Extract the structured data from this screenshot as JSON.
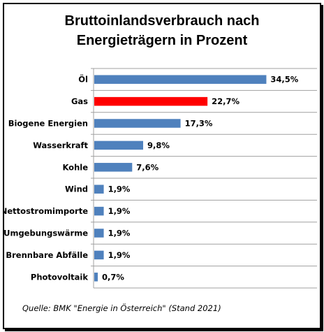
{
  "chart_data": {
    "type": "bar",
    "orientation": "horizontal",
    "title": [
      "Bruttoinlandsverbrauch nach",
      "Energieträgern in Prozent"
    ],
    "categories": [
      "Öl",
      "Gas",
      "Biogene Energien",
      "Wasserkraft",
      "Kohle",
      "Wind",
      "Nettostromimporte",
      "Umgebungswärme",
      "Brennbare Abfälle",
      "Photovoltaik"
    ],
    "values": [
      34.5,
      22.7,
      17.3,
      9.8,
      7.6,
      1.9,
      1.9,
      1.9,
      1.9,
      0.7
    ],
    "value_labels": [
      "34,5%",
      "22,7%",
      "17,3%",
      "9,8%",
      "7,6%",
      "1,9%",
      "1,9%",
      "1,9%",
      "1,9%",
      "0,7%"
    ],
    "colors": [
      "#4f81bd",
      "#ff0000",
      "#4f81bd",
      "#4f81bd",
      "#4f81bd",
      "#4f81bd",
      "#4f81bd",
      "#4f81bd",
      "#4f81bd",
      "#4f81bd"
    ],
    "xlim": [
      0,
      35
    ],
    "grid": true
  },
  "source": "Quelle: BMK \"Energie in Österreich\" (Stand 2021)"
}
